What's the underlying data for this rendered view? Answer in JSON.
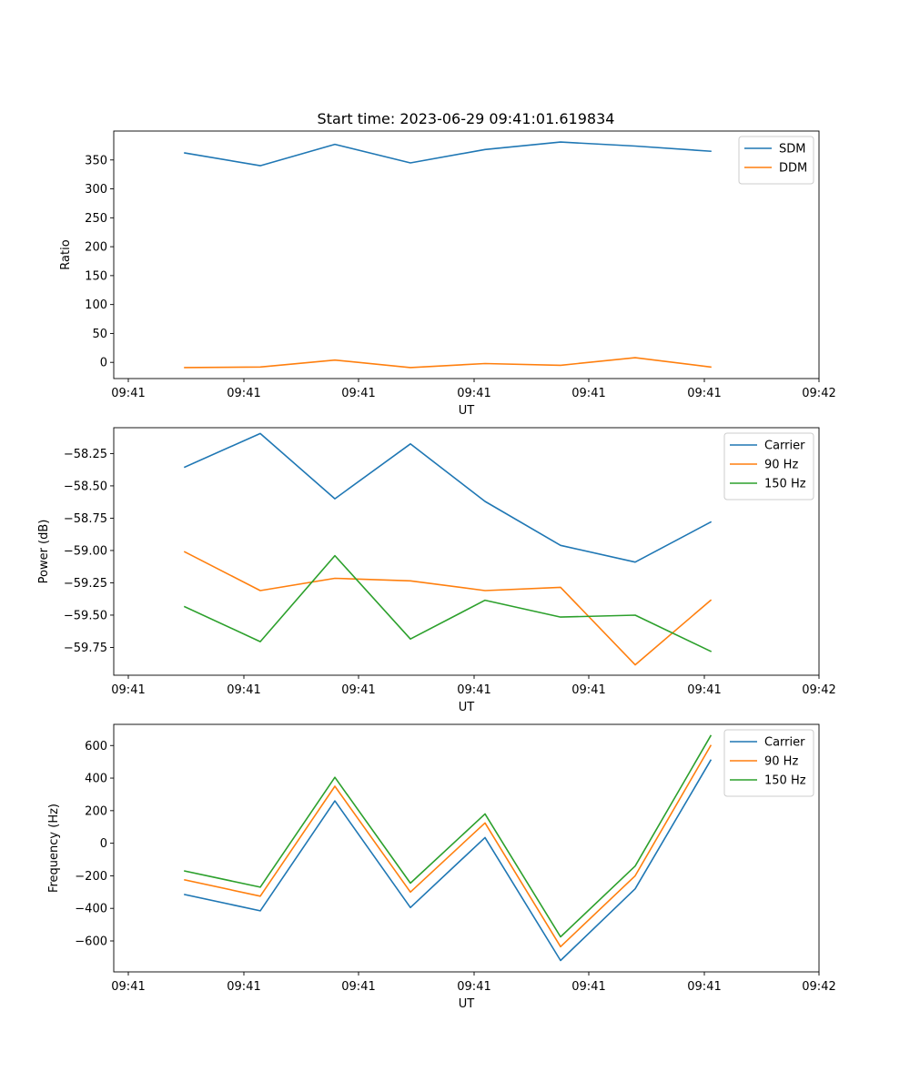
{
  "title": "Start time: 2023-06-29 09:41:01.619834",
  "colors": {
    "blue": "#1f77b4",
    "orange": "#ff7f0e",
    "green": "#2ca02c"
  },
  "chart_data": [
    {
      "type": "line",
      "xlabel": "UT",
      "ylabel": "Ratio",
      "x_tick_labels": [
        "09:41",
        "09:41",
        "09:41",
        "09:41",
        "09:41",
        "09:41",
        "09:42"
      ],
      "y_ticks": [
        0,
        50,
        100,
        150,
        200,
        250,
        300,
        350
      ],
      "ylim": [
        -28,
        400
      ],
      "legend": "top-right",
      "series": [
        {
          "name": "SDM",
          "color": "blue",
          "values": [
            362,
            340,
            377,
            345,
            368,
            381,
            374,
            365
          ]
        },
        {
          "name": "DDM",
          "color": "orange",
          "values": [
            -9,
            -8,
            4,
            -9,
            -2,
            -5,
            8,
            -8
          ]
        }
      ]
    },
    {
      "type": "line",
      "xlabel": "UT",
      "ylabel": "Power (dB)",
      "x_tick_labels": [
        "09:41",
        "09:41",
        "09:41",
        "09:41",
        "09:41",
        "09:41",
        "09:42"
      ],
      "y_ticks": [
        -58.25,
        -58.5,
        -58.75,
        -59.0,
        -59.25,
        -59.5,
        -59.75
      ],
      "y_tick_labels": [
        "−58.25",
        "−58.50",
        "−58.75",
        "−59.00",
        "−59.25",
        "−59.50",
        "−59.75"
      ],
      "ylim": [
        -59.965,
        -58.05
      ],
      "legend": "top-right",
      "series": [
        {
          "name": "Carrier",
          "color": "blue",
          "values": [
            -58.355,
            -58.095,
            -58.6,
            -58.175,
            -58.62,
            -58.96,
            -59.09,
            -58.78
          ]
        },
        {
          "name": "90 Hz",
          "color": "orange",
          "values": [
            -59.01,
            -59.31,
            -59.215,
            -59.235,
            -59.31,
            -59.285,
            -59.885,
            -59.385
          ]
        },
        {
          "name": "150 Hz",
          "color": "green",
          "values": [
            -59.435,
            -59.705,
            -59.04,
            -59.685,
            -59.385,
            -59.515,
            -59.5,
            -59.78
          ]
        }
      ]
    },
    {
      "type": "line",
      "xlabel": "UT",
      "ylabel": "Frequency (Hz)",
      "x_tick_labels": [
        "09:41",
        "09:41",
        "09:41",
        "09:41",
        "09:41",
        "09:41",
        "09:42"
      ],
      "y_ticks": [
        -600,
        -400,
        -200,
        0,
        200,
        400,
        600
      ],
      "y_tick_labels": [
        "−600",
        "−400",
        "−200",
        "0",
        "200",
        "400",
        "600"
      ],
      "ylim": [
        -790,
        730
      ],
      "legend": "top-right",
      "series": [
        {
          "name": "Carrier",
          "color": "blue",
          "values": [
            -315,
            -415,
            260,
            -395,
            35,
            -720,
            -280,
            510
          ]
        },
        {
          "name": "90 Hz",
          "color": "orange",
          "values": [
            -225,
            -325,
            350,
            -300,
            125,
            -635,
            -200,
            600
          ]
        },
        {
          "name": "150 Hz",
          "color": "green",
          "values": [
            -170,
            -270,
            405,
            -245,
            180,
            -575,
            -140,
            660
          ]
        }
      ]
    }
  ]
}
